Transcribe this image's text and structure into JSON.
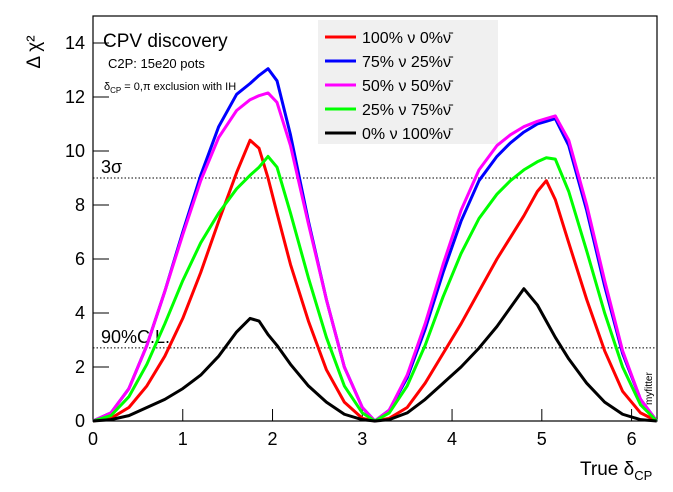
{
  "chart_data": {
    "type": "line",
    "title": "CPV discovery",
    "subtitle": "C2P: 15e20 pots",
    "note_parts": [
      "δ",
      "CP",
      " = 0,π exclusion with IH"
    ],
    "x_label_parts": [
      "True δ",
      "CP"
    ],
    "y_label": "Δ χ²",
    "watermark": "myfitter",
    "xlim": [
      0,
      6.2832
    ],
    "ylim": [
      0,
      15
    ],
    "xticks": [
      0,
      1,
      2,
      3,
      4,
      5,
      6
    ],
    "yticks": [
      0,
      2,
      4,
      6,
      8,
      10,
      12,
      14
    ],
    "reference_lines": [
      {
        "value": 9,
        "label": "3σ"
      },
      {
        "value": 2.71,
        "label": "90%C.L."
      }
    ],
    "x": [
      0,
      0.2,
      0.4,
      0.6,
      0.8,
      1.0,
      1.2,
      1.4,
      1.6,
      1.75,
      1.85,
      1.95,
      2.05,
      2.2,
      2.4,
      2.6,
      2.8,
      3.0,
      3.14,
      3.3,
      3.5,
      3.7,
      3.9,
      4.1,
      4.3,
      4.5,
      4.65,
      4.8,
      4.95,
      5.05,
      5.15,
      5.3,
      5.5,
      5.7,
      5.9,
      6.1,
      6.28
    ],
    "series": [
      {
        "name": "100% ν 0%ν̄",
        "color": "#ff0000",
        "values": [
          0,
          0.1,
          0.5,
          1.3,
          2.4,
          3.8,
          5.5,
          7.4,
          9.2,
          10.4,
          10.1,
          9,
          7.7,
          5.8,
          3.7,
          1.9,
          0.7,
          0.1,
          0,
          0.1,
          0.5,
          1.4,
          2.5,
          3.6,
          4.8,
          6,
          6.8,
          7.6,
          8.5,
          8.9,
          8.2,
          6.6,
          4.5,
          2.6,
          1.1,
          0.3,
          0
        ]
      },
      {
        "name": "75% ν 25%ν̄",
        "color": "#0000ff",
        "values": [
          0,
          0.3,
          1.2,
          2.8,
          4.8,
          7,
          9.1,
          10.9,
          12.1,
          12.5,
          12.8,
          13.05,
          12.6,
          10.6,
          7.4,
          4.5,
          2,
          0.5,
          0,
          0.4,
          1.6,
          3.4,
          5.5,
          7.4,
          8.9,
          9.8,
          10.3,
          10.7,
          11,
          11.1,
          11.2,
          10.2,
          7.8,
          5,
          2.5,
          0.8,
          0
        ]
      },
      {
        "name": "50% ν 50%ν̄",
        "color": "#ff00ff",
        "values": [
          0,
          0.3,
          1.2,
          2.8,
          4.8,
          6.9,
          8.9,
          10.5,
          11.5,
          11.9,
          12.05,
          12.15,
          11.8,
          10.2,
          7.3,
          4.5,
          2,
          0.5,
          0,
          0.4,
          1.7,
          3.6,
          5.8,
          7.8,
          9.3,
          10.2,
          10.6,
          10.9,
          11.1,
          11.2,
          11.3,
          10.4,
          8,
          5.2,
          2.6,
          0.8,
          0
        ]
      },
      {
        "name": "25% ν 75%ν̄",
        "color": "#00ff00",
        "values": [
          0,
          0.2,
          0.9,
          2.1,
          3.6,
          5.2,
          6.6,
          7.7,
          8.6,
          9.1,
          9.4,
          9.8,
          9.4,
          7.7,
          5.3,
          3.1,
          1.3,
          0.3,
          0,
          0.3,
          1.3,
          2.8,
          4.6,
          6.2,
          7.5,
          8.4,
          8.9,
          9.3,
          9.6,
          9.75,
          9.7,
          8.5,
          6.3,
          4,
          2,
          0.6,
          0
        ]
      },
      {
        "name": "0% ν 100%ν̄",
        "color": "#000000",
        "values": [
          0,
          0.05,
          0.2,
          0.5,
          0.8,
          1.2,
          1.7,
          2.4,
          3.3,
          3.8,
          3.7,
          3.2,
          2.8,
          2.1,
          1.3,
          0.7,
          0.25,
          0.05,
          0,
          0.05,
          0.3,
          0.8,
          1.4,
          2.0,
          2.7,
          3.5,
          4.2,
          4.9,
          4.3,
          3.7,
          3.1,
          2.3,
          1.4,
          0.7,
          0.25,
          0.05,
          0
        ]
      }
    ]
  }
}
